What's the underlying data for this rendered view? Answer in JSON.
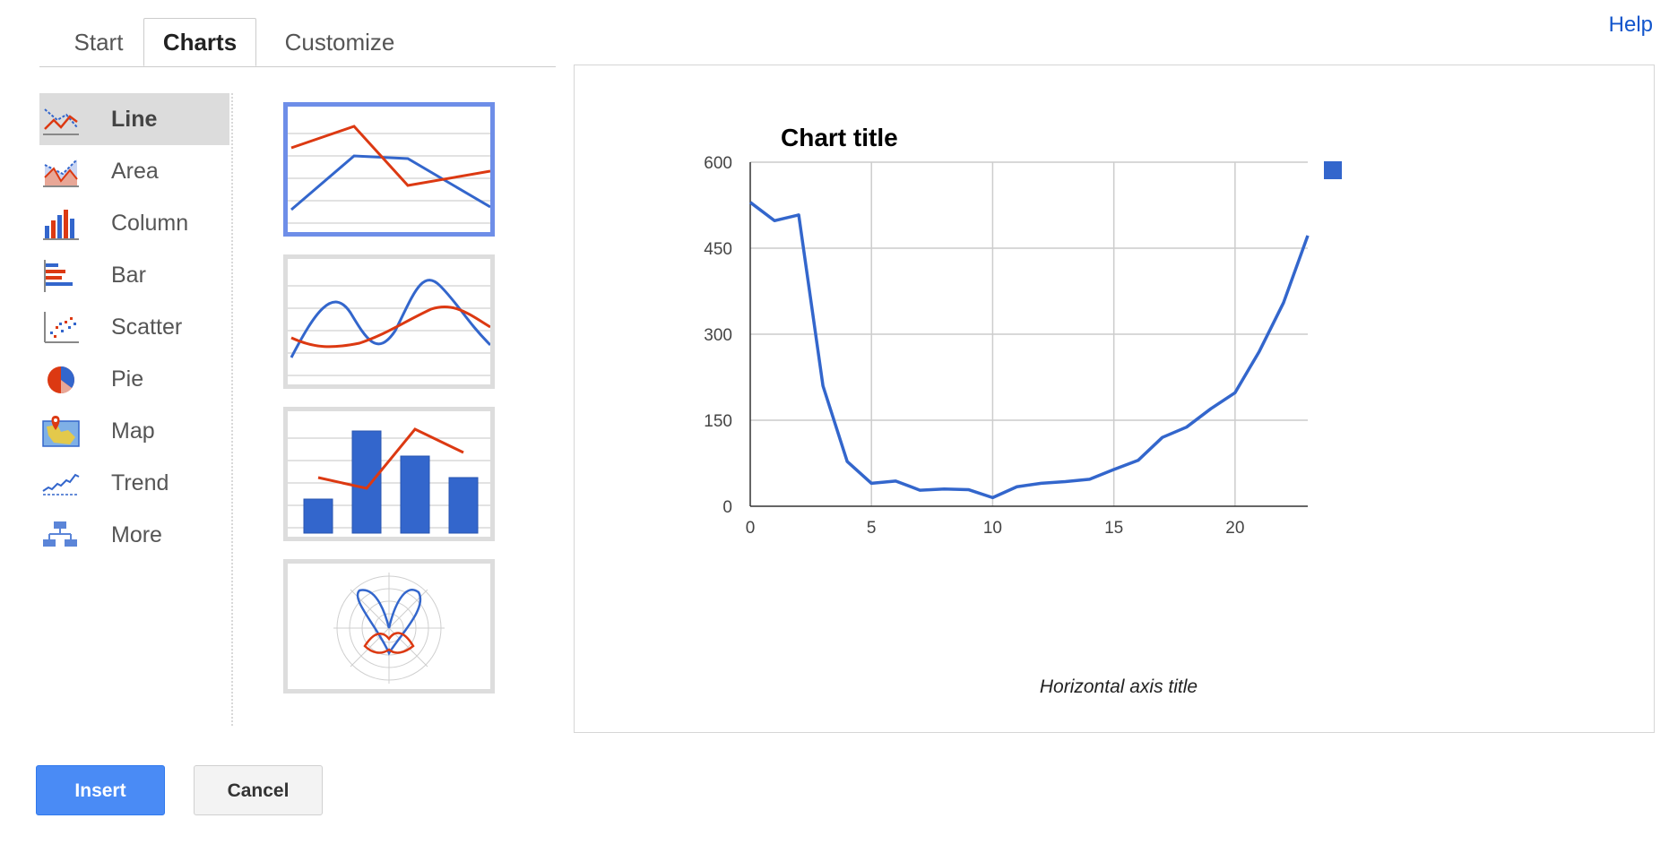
{
  "tabs": [
    {
      "label": "Start"
    },
    {
      "label": "Charts",
      "active": true
    },
    {
      "label": "Customize"
    }
  ],
  "help_label": "Help",
  "chart_types": [
    {
      "label": "Line",
      "icon": "line-chart-icon",
      "selected": true
    },
    {
      "label": "Area",
      "icon": "area-chart-icon"
    },
    {
      "label": "Column",
      "icon": "column-chart-icon"
    },
    {
      "label": "Bar",
      "icon": "bar-chart-icon"
    },
    {
      "label": "Scatter",
      "icon": "scatter-chart-icon"
    },
    {
      "label": "Pie",
      "icon": "pie-chart-icon"
    },
    {
      "label": "Map",
      "icon": "map-chart-icon"
    },
    {
      "label": "Trend",
      "icon": "trend-chart-icon"
    },
    {
      "label": "More",
      "icon": "more-charts-icon"
    }
  ],
  "thumbnails": [
    {
      "name": "line-straight-thumbnail",
      "selected": true
    },
    {
      "name": "line-smooth-thumbnail"
    },
    {
      "name": "combo-column-line-thumbnail"
    },
    {
      "name": "radar-thumbnail"
    }
  ],
  "colors": {
    "series_blue": "#3366cc",
    "series_red": "#dc3912",
    "selected_border": "#6e8ee8",
    "insert_button": "#4a8bf5",
    "link": "#1155cc"
  },
  "chart_data": {
    "type": "line",
    "title": "Chart title",
    "xlabel": "Horizontal axis title",
    "ylabel": "",
    "x": [
      0,
      1,
      2,
      3,
      4,
      5,
      6,
      7,
      8,
      9,
      10,
      11,
      12,
      13,
      14,
      15,
      16,
      17,
      18,
      19,
      20,
      21,
      22,
      23
    ],
    "series": [
      {
        "values": [
          530,
          498,
          508,
          210,
          78,
          40,
          44,
          28,
          30,
          29,
          15,
          34,
          40,
          43,
          47,
          64,
          80,
          120,
          138,
          170,
          198,
          270,
          355,
          472
        ],
        "color": "#3366cc"
      }
    ],
    "xlim": [
      0,
      23
    ],
    "ylim": [
      0,
      600
    ],
    "xticks": [
      "0",
      "5",
      "10",
      "15",
      "20"
    ],
    "yticks": [
      "0",
      "150",
      "300",
      "450",
      "600"
    ],
    "grid": true,
    "legend": "right"
  },
  "buttons": {
    "insert": "Insert",
    "cancel": "Cancel"
  }
}
